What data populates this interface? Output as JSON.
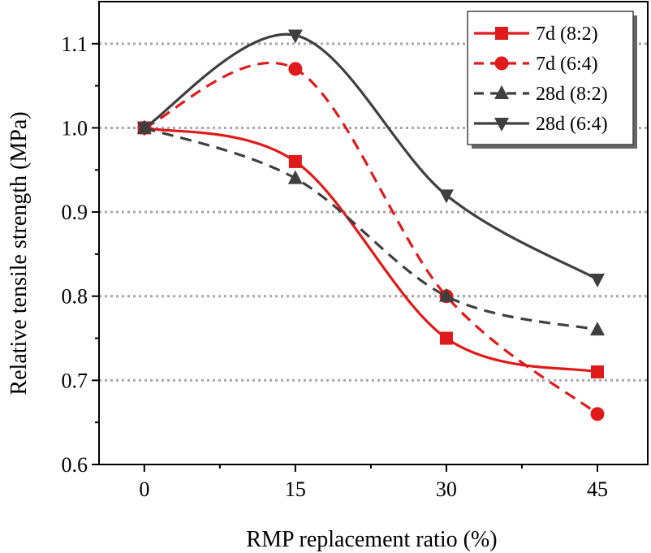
{
  "chart_data": {
    "type": "line",
    "xlabel": "RMP replacement ratio (%)",
    "ylabel": "Relative tensile strength (MPa)",
    "x": [
      0,
      15,
      30,
      45
    ],
    "xticks": [
      "0",
      "15",
      "30",
      "45"
    ],
    "yticks": [
      "0.6",
      "0.7",
      "0.8",
      "0.9",
      "1.0",
      "1.1"
    ],
    "xlim": [
      -4.5,
      50
    ],
    "ylim": [
      0.6,
      1.15
    ],
    "grid": "horizontal dotted",
    "legend_position": "top-right",
    "series": [
      {
        "name": "7d (8:2)",
        "values": [
          1.0,
          0.96,
          0.75,
          0.71
        ],
        "color": "#e01a1a",
        "dash": "solid",
        "marker": "square"
      },
      {
        "name": "7d (6:4)",
        "values": [
          1.0,
          1.07,
          0.8,
          0.66
        ],
        "color": "#e01a1a",
        "dash": "dashed",
        "marker": "circle"
      },
      {
        "name": "28d (8:2)",
        "values": [
          1.0,
          0.94,
          0.8,
          0.76
        ],
        "color": "#3f3f3f",
        "dash": "dashed",
        "marker": "triangle-up"
      },
      {
        "name": "28d (6:4)",
        "values": [
          1.0,
          1.11,
          0.92,
          0.82
        ],
        "color": "#3f3f3f",
        "dash": "solid",
        "marker": "triangle-down"
      }
    ]
  }
}
